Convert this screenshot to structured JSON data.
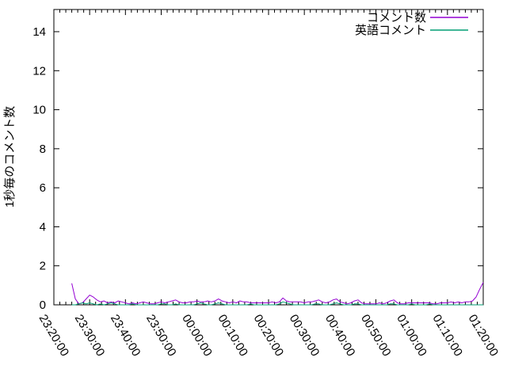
{
  "chart_data": {
    "type": "line",
    "title": "",
    "xlabel": "",
    "ylabel": "1秒毎のコメント数",
    "ylim": [
      0,
      15.1
    ],
    "yticks": [
      0,
      2,
      4,
      6,
      8,
      10,
      12,
      14
    ],
    "x_axis_unit": "time (HH:MM:SS)",
    "xtick_minutes": [
      0,
      10,
      20,
      30,
      40,
      50,
      60,
      70,
      80,
      90,
      100,
      110,
      120
    ],
    "xtick_labels": [
      "23:20:00",
      "23:30:00",
      "23:40:00",
      "23:50:00",
      "00:00:00",
      "00:10:00",
      "00:20:00",
      "00:30:00",
      "00:40:00",
      "00:50:00",
      "01:00:00",
      "01:10:00",
      "01:20:00"
    ],
    "grid": false,
    "legend": {
      "position": "top-right-inside",
      "entries": [
        {
          "label": "コメント数",
          "color": "#9400d3"
        },
        {
          "label": "英語コメント",
          "color": "#009e73"
        }
      ]
    },
    "x_minutes_after_2320": [
      5,
      6,
      7,
      8,
      9,
      10,
      11,
      12,
      13,
      14,
      15,
      16,
      17,
      18,
      19,
      20,
      21,
      22,
      23,
      24,
      25,
      26,
      27,
      28,
      29,
      30,
      31,
      32,
      33,
      34,
      35,
      36,
      37,
      38,
      39,
      40,
      41,
      42,
      43,
      44,
      45,
      46,
      47,
      48,
      49,
      50,
      51,
      52,
      53,
      54,
      55,
      56,
      57,
      58,
      59,
      60,
      61,
      62,
      63,
      64,
      65,
      66,
      67,
      68,
      69,
      70,
      71,
      72,
      73,
      74,
      75,
      76,
      77,
      78,
      79,
      80,
      81,
      82,
      83,
      84,
      85,
      86,
      87,
      88,
      89,
      90,
      91,
      92,
      93,
      94,
      95,
      96,
      97,
      98,
      99,
      100,
      101,
      102,
      103,
      104,
      105,
      106,
      107,
      108,
      109,
      110,
      111,
      112,
      113,
      114,
      115,
      116,
      117,
      118,
      119,
      120
    ],
    "series": [
      {
        "name": "コメント数",
        "color": "#9400d3",
        "values": [
          1.1,
          0.3,
          0.05,
          0.1,
          0.3,
          0.5,
          0.4,
          0.25,
          0.15,
          0.2,
          0.1,
          0.15,
          0.1,
          0.2,
          0.15,
          0.1,
          0.05,
          0.1,
          0.05,
          0.1,
          0.15,
          0.1,
          0.05,
          0.05,
          0.1,
          0.15,
          0.1,
          0.15,
          0.2,
          0.25,
          0.15,
          0.1,
          0.1,
          0.15,
          0.15,
          0.2,
          0.15,
          0.15,
          0.2,
          0.15,
          0.2,
          0.3,
          0.2,
          0.15,
          0.1,
          0.15,
          0.1,
          0.2,
          0.15,
          0.15,
          0.1,
          0.1,
          0.1,
          0.1,
          0.1,
          0.1,
          0.15,
          0.1,
          0.15,
          0.35,
          0.2,
          0.15,
          0.15,
          0.15,
          0.15,
          0.1,
          0.15,
          0.15,
          0.2,
          0.25,
          0.15,
          0.1,
          0.15,
          0.25,
          0.3,
          0.15,
          0.1,
          0.05,
          0.1,
          0.2,
          0.25,
          0.1,
          0.05,
          0.05,
          0.05,
          0.05,
          0.1,
          0.05,
          0.1,
          0.2,
          0.25,
          0.1,
          0.05,
          0.05,
          0.1,
          0.1,
          0.1,
          0.1,
          0.1,
          0.1,
          0.1,
          0.05,
          0.05,
          0.1,
          0.1,
          0.1,
          0.15,
          0.1,
          0.15,
          0.1,
          0.15,
          0.15,
          0.2,
          0.4,
          0.8,
          1.15
        ]
      },
      {
        "name": "英語コメント",
        "color": "#009e73",
        "values": [
          0,
          0,
          0.05,
          0.1,
          0.05,
          0.1,
          0.05,
          0,
          0.05,
          0,
          0.05,
          0.1,
          0.05,
          0,
          0,
          0,
          0,
          0.05,
          0,
          0,
          0,
          0,
          0,
          0,
          0,
          0.05,
          0.05,
          0,
          0,
          0.05,
          0,
          0,
          0,
          0,
          0,
          0.05,
          0.1,
          0.05,
          0,
          0,
          0.05,
          0.1,
          0.05,
          0,
          0,
          0,
          0,
          0,
          0,
          0,
          0.05,
          0,
          0,
          0,
          0,
          0,
          0,
          0,
          0.05,
          0.15,
          0.1,
          0.05,
          0,
          0,
          0,
          0,
          0,
          0,
          0.05,
          0.05,
          0,
          0,
          0,
          0.05,
          0.1,
          0.05,
          0,
          0,
          0,
          0.05,
          0.05,
          0,
          0,
          0,
          0,
          0,
          0,
          0,
          0,
          0.05,
          0.05,
          0,
          0,
          0,
          0,
          0.05,
          0,
          0,
          0,
          0,
          0.05,
          0,
          0,
          0,
          0,
          0,
          0,
          0,
          0,
          0,
          0,
          0,
          0,
          0,
          0,
          0
        ]
      }
    ]
  }
}
